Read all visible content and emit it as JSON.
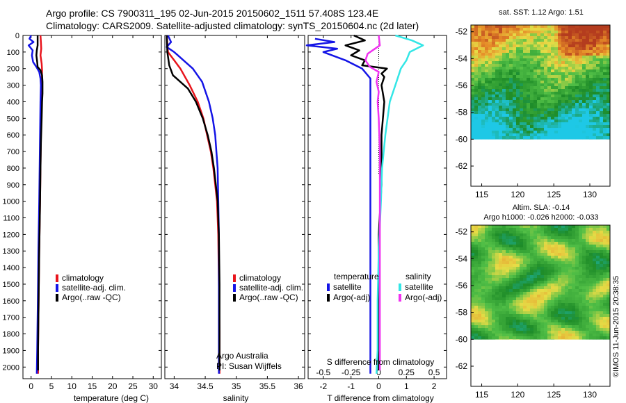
{
  "header": {
    "line1": "Argo profile: CS 7900311_195 02-Jun-2015 20150602_1511 57.408S 123.4E",
    "line2": "Climatology: CARS2009. Satellite-adjusted climatology: synTS_20150604.nc (2d later)"
  },
  "legend_profiles": [
    "climatology",
    "satellite-adj. clim.",
    "Argo(..raw -QC)"
  ],
  "legend_diff": {
    "temperature_title": "temperature",
    "salinity_title": "salinity",
    "t_satellite": "satellite",
    "t_argo": "Argo(-adj)",
    "s_satellite": "satellite",
    "s_argo": "Argo(-adj)"
  },
  "credit": {
    "line1": "Argo Australia",
    "line2": "PI: Susan Wijffels"
  },
  "map_labels": {
    "sst_title": "sat. SST: 1.12 Argo: 1.51",
    "sla_title1": "Altim. SLA: -0.14",
    "sla_title2": "Argo h1000: -0.026 h2000: -0.033"
  },
  "watermark": "©IMOS 11-Jun-2015 20:38:35",
  "colors": {
    "climatology": "#e8141c",
    "satellite": "#1414e6",
    "argo": "#000000",
    "salinity_satellite": "#33e6e6",
    "salinity_argo": "#f032f0"
  },
  "chart_data": [
    {
      "type": "line",
      "xlabel": "temperature (deg C)",
      "ylabel": "",
      "xlim": [
        -2,
        32
      ],
      "ylim": [
        2070,
        0
      ],
      "xticks": [
        0,
        5,
        10,
        15,
        20,
        25,
        30
      ],
      "yticks": [
        0,
        100,
        200,
        300,
        400,
        500,
        600,
        700,
        800,
        900,
        1000,
        1100,
        1200,
        1300,
        1400,
        1500,
        1600,
        1700,
        1800,
        1900,
        2000
      ],
      "series": [
        {
          "name": "climatology",
          "points": [
            [
              2.3,
              0
            ],
            [
              2.4,
              40
            ],
            [
              2.5,
              80
            ],
            [
              2.3,
              120
            ],
            [
              2.6,
              170
            ],
            [
              2.7,
              210
            ],
            [
              2.6,
              300
            ],
            [
              2.5,
              400
            ],
            [
              2.4,
              600
            ],
            [
              2.3,
              800
            ],
            [
              2.2,
              1000
            ],
            [
              2.0,
              1300
            ],
            [
              1.9,
              1500
            ],
            [
              1.8,
              1700
            ],
            [
              1.7,
              1900
            ],
            [
              1.7,
              2040
            ]
          ]
        },
        {
          "name": "satellite-adj. clim.",
          "points": [
            [
              0.0,
              0
            ],
            [
              -0.4,
              20
            ],
            [
              0.6,
              40
            ],
            [
              -0.6,
              60
            ],
            [
              0.4,
              90
            ],
            [
              0.2,
              120
            ],
            [
              0.5,
              160
            ],
            [
              1.3,
              190
            ],
            [
              2.0,
              220
            ],
            [
              2.3,
              260
            ],
            [
              2.4,
              300
            ],
            [
              2.3,
              400
            ],
            [
              2.2,
              600
            ],
            [
              2.1,
              800
            ],
            [
              2.0,
              1000
            ],
            [
              1.8,
              1300
            ],
            [
              1.7,
              1500
            ],
            [
              1.6,
              1700
            ],
            [
              1.5,
              1900
            ],
            [
              1.4,
              2040
            ]
          ]
        },
        {
          "name": "Argo(..raw -QC)",
          "points": [
            [
              1.6,
              0
            ],
            [
              1.6,
              60
            ],
            [
              1.4,
              90
            ],
            [
              1.3,
              120
            ],
            [
              1.5,
              160
            ],
            [
              1.6,
              190
            ],
            [
              2.3,
              210
            ],
            [
              2.7,
              240
            ],
            [
              2.8,
              280
            ],
            [
              2.8,
              350
            ],
            [
              2.7,
              400
            ],
            [
              2.6,
              500
            ],
            [
              2.4,
              650
            ],
            [
              2.3,
              800
            ],
            [
              2.2,
              1000
            ],
            [
              2.0,
              1300
            ],
            [
              1.9,
              1500
            ],
            [
              1.8,
              1700
            ],
            [
              1.7,
              1900
            ],
            [
              1.7,
              2020
            ]
          ]
        }
      ]
    },
    {
      "type": "line",
      "xlabel": "salinity",
      "ylabel": "",
      "xlim": [
        33.85,
        36.1
      ],
      "ylim": [
        2070,
        0
      ],
      "xticks": [
        34,
        34.5,
        35,
        35.5,
        36
      ],
      "series": [
        {
          "name": "climatology",
          "points": [
            [
              33.88,
              0
            ],
            [
              33.9,
              100
            ],
            [
              34.0,
              150
            ],
            [
              34.1,
              200
            ],
            [
              34.25,
              300
            ],
            [
              34.38,
              400
            ],
            [
              34.47,
              500
            ],
            [
              34.53,
              600
            ],
            [
              34.59,
              700
            ],
            [
              34.63,
              800
            ],
            [
              34.66,
              900
            ],
            [
              34.69,
              1000
            ],
            [
              34.71,
              1200
            ],
            [
              34.72,
              1500
            ],
            [
              34.73,
              1800
            ],
            [
              34.73,
              2040
            ]
          ]
        },
        {
          "name": "satellite-adj. clim.",
          "points": [
            [
              33.9,
              0
            ],
            [
              33.95,
              40
            ],
            [
              33.88,
              70
            ],
            [
              34.0,
              100
            ],
            [
              34.15,
              150
            ],
            [
              34.3,
              200
            ],
            [
              34.45,
              280
            ],
            [
              34.56,
              400
            ],
            [
              34.62,
              500
            ],
            [
              34.66,
              600
            ],
            [
              34.68,
              700
            ],
            [
              34.7,
              800
            ],
            [
              34.71,
              1000
            ],
            [
              34.72,
              1200
            ],
            [
              34.72,
              1500
            ],
            [
              34.72,
              1800
            ],
            [
              34.72,
              2040
            ]
          ]
        },
        {
          "name": "Argo(..raw -QC)",
          "points": [
            [
              33.88,
              0
            ],
            [
              33.89,
              100
            ],
            [
              33.92,
              180
            ],
            [
              33.98,
              240
            ],
            [
              34.1,
              280
            ],
            [
              34.22,
              320
            ],
            [
              34.35,
              400
            ],
            [
              34.46,
              500
            ],
            [
              34.54,
              600
            ],
            [
              34.6,
              700
            ],
            [
              34.64,
              800
            ],
            [
              34.67,
              900
            ],
            [
              34.7,
              1000
            ],
            [
              34.72,
              1200
            ],
            [
              34.73,
              1500
            ],
            [
              34.73,
              1800
            ],
            [
              34.73,
              2020
            ]
          ]
        }
      ]
    },
    {
      "type": "line",
      "xlabel": "T difference from climatology",
      "ylabel": "",
      "xlim": [
        -2.55,
        2.45
      ],
      "ylim": [
        2070,
        0
      ],
      "xticks": [
        -2,
        -1,
        0,
        1,
        2
      ],
      "secondary_xlabel": "S difference from climatology",
      "secondary_xticks": [
        -0.5,
        -0.25,
        0,
        0.25,
        0.5
      ],
      "series": [
        {
          "name": "temperature satellite",
          "axis": "T",
          "points": [
            [
              -2.3,
              20
            ],
            [
              -1.6,
              40
            ],
            [
              -2.6,
              60
            ],
            [
              -1.5,
              80
            ],
            [
              -2.0,
              100
            ],
            [
              -1.2,
              150
            ],
            [
              -0.6,
              200
            ],
            [
              -0.3,
              260
            ],
            [
              -0.3,
              400
            ],
            [
              -0.3,
              700
            ],
            [
              -0.3,
              1000
            ],
            [
              -0.3,
              1300
            ],
            [
              -0.3,
              1600
            ],
            [
              -0.3,
              1900
            ],
            [
              -0.3,
              2040
            ]
          ]
        },
        {
          "name": "temperature Argo(-adj)",
          "axis": "T",
          "points": [
            [
              -0.9,
              0
            ],
            [
              -0.5,
              30
            ],
            [
              -1.2,
              60
            ],
            [
              -0.7,
              90
            ],
            [
              -1.0,
              120
            ],
            [
              -0.5,
              150
            ],
            [
              -0.6,
              180
            ],
            [
              0.3,
              200
            ],
            [
              0.1,
              230
            ],
            [
              0.2,
              250
            ],
            [
              0.1,
              300
            ],
            [
              0.2,
              400
            ],
            [
              0.1,
              600
            ],
            [
              0.1,
              900
            ],
            [
              0.0,
              1200
            ],
            [
              0.0,
              1500
            ],
            [
              0.0,
              1800
            ],
            [
              0.0,
              2020
            ]
          ]
        },
        {
          "name": "salinity satellite",
          "axis": "S",
          "points": [
            [
              0.15,
              0
            ],
            [
              0.3,
              30
            ],
            [
              0.4,
              60
            ],
            [
              0.28,
              100
            ],
            [
              0.25,
              150
            ],
            [
              0.2,
              200
            ],
            [
              0.15,
              300
            ],
            [
              0.1,
              400
            ],
            [
              0.06,
              600
            ],
            [
              0.03,
              800
            ],
            [
              0.02,
              1000
            ],
            [
              0.0,
              1300
            ],
            [
              -0.01,
              1600
            ],
            [
              -0.01,
              1900
            ],
            [
              -0.02,
              2040
            ]
          ]
        },
        {
          "name": "salinity Argo(-adj)",
          "axis": "S",
          "points": [
            [
              0.0,
              0
            ],
            [
              0.01,
              60
            ],
            [
              -0.1,
              110
            ],
            [
              -0.12,
              150
            ],
            [
              -0.08,
              190
            ],
            [
              0.0,
              220
            ],
            [
              -0.02,
              280
            ],
            [
              0.0,
              340
            ],
            [
              -0.01,
              400
            ],
            [
              0.0,
              500
            ],
            [
              0.01,
              700
            ],
            [
              0.01,
              900
            ],
            [
              0.01,
              1200
            ],
            [
              0.01,
              1500
            ],
            [
              0.01,
              1800
            ],
            [
              0.01,
              2020
            ]
          ]
        }
      ]
    },
    {
      "type": "heatmap",
      "title": "sat. SST: 1.12 Argo: 1.51",
      "xlim": [
        113.5,
        132.8
      ],
      "ylim": [
        -63.5,
        -51.5
      ],
      "data_ylim": [
        -60,
        -51.5
      ],
      "xticks": [
        115,
        120,
        125,
        130
      ],
      "yticks": [
        -52,
        -54,
        -56,
        -58,
        -60,
        -62
      ]
    },
    {
      "type": "heatmap",
      "title": "Altim. SLA: -0.14",
      "xlim": [
        113.5,
        132.8
      ],
      "ylim": [
        -63.5,
        -51.5
      ],
      "data_ylim": [
        -60,
        -51.5
      ],
      "xticks": [
        115,
        120,
        125,
        130
      ],
      "yticks": [
        -52,
        -54,
        -56,
        -58,
        -60,
        -62
      ]
    }
  ]
}
